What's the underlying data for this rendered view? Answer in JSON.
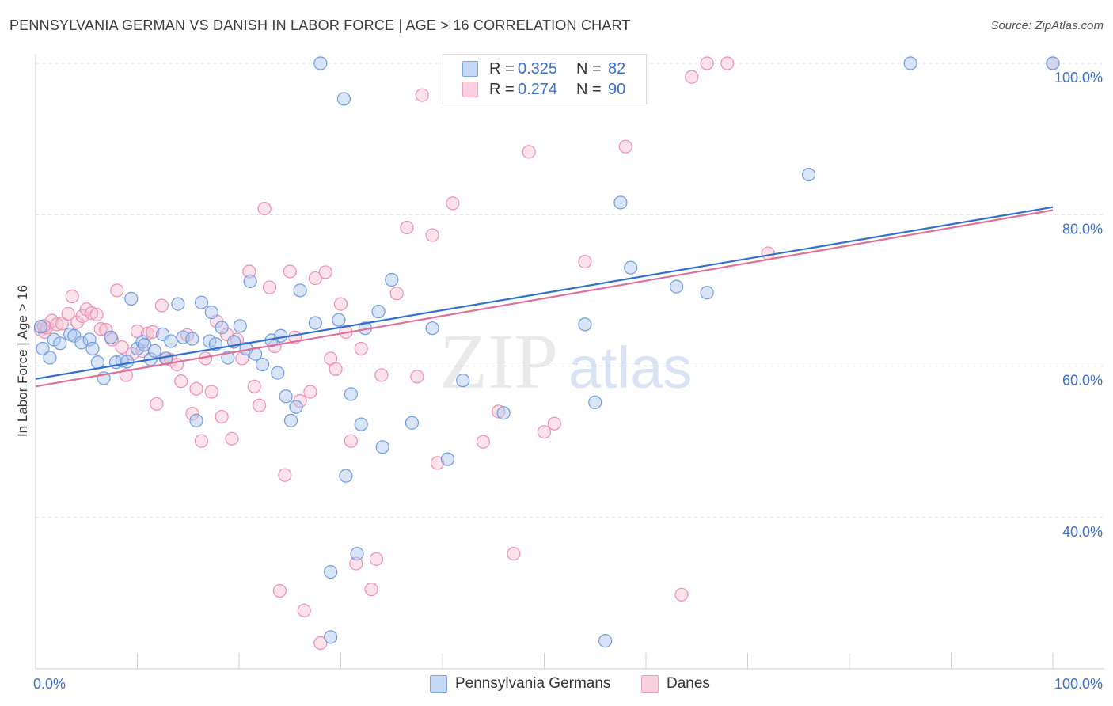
{
  "title": "PENNSYLVANIA GERMAN VS DANISH IN LABOR FORCE | AGE > 16 CORRELATION CHART",
  "source": "Source: ZipAtlas.com",
  "watermark": {
    "zip": "ZIP",
    "atlas": "atlas"
  },
  "legend": {
    "r_label": "R =",
    "n_label": "N =",
    "entries": [
      {
        "r": "0.325",
        "n": "82"
      },
      {
        "r": "0.274",
        "n": "90"
      }
    ]
  },
  "colors": {
    "blue_fill": "#aac6ee",
    "blue_stroke": "#6d9be0",
    "blue_line": "#2f6fcf",
    "pink_fill": "#f7bfd2",
    "pink_stroke": "#ee8fb0",
    "pink_line": "#e06f99",
    "axis_text": "#3a6fd0"
  },
  "chart_data": {
    "type": "scatter",
    "ylabel": "In Labor Force | Age > 16",
    "xlim": [
      0,
      100
    ],
    "ylim": [
      20,
      100
    ],
    "x_tick_labels": [
      "0.0%",
      "100.0%"
    ],
    "y_ticks": [
      40,
      60,
      80,
      100
    ],
    "y_tick_labels": [
      "40.0%",
      "60.0%",
      "80.0%",
      "100.0%"
    ],
    "grid": "horizontal dashed",
    "series": [
      {
        "name": "Pennsylvania Germans",
        "trend": {
          "x0": 0,
          "y0": 58.3,
          "x1": 100,
          "y1": 81.0
        },
        "points": [
          [
            0.5,
            65.2
          ],
          [
            0.7,
            62.3
          ],
          [
            1.4,
            61.1
          ],
          [
            1.8,
            63.5
          ],
          [
            2.4,
            63.0
          ],
          [
            3.4,
            64.2
          ],
          [
            3.8,
            64.0
          ],
          [
            4.5,
            63.1
          ],
          [
            5.3,
            63.5
          ],
          [
            5.6,
            62.3
          ],
          [
            6.1,
            60.5
          ],
          [
            6.7,
            58.4
          ],
          [
            7.4,
            63.8
          ],
          [
            7.9,
            60.5
          ],
          [
            8.5,
            60.7
          ],
          [
            9.0,
            60.6
          ],
          [
            9.4,
            68.9
          ],
          [
            10.0,
            62.3
          ],
          [
            10.5,
            63.2
          ],
          [
            10.7,
            62.8
          ],
          [
            11.3,
            60.9
          ],
          [
            11.7,
            62.0
          ],
          [
            12.5,
            64.2
          ],
          [
            12.8,
            61.0
          ],
          [
            13.3,
            63.3
          ],
          [
            14.0,
            68.2
          ],
          [
            14.5,
            63.8
          ],
          [
            15.4,
            63.6
          ],
          [
            15.8,
            52.8
          ],
          [
            16.3,
            68.4
          ],
          [
            17.1,
            63.3
          ],
          [
            17.3,
            67.1
          ],
          [
            17.7,
            62.9
          ],
          [
            18.3,
            65.1
          ],
          [
            18.9,
            61.1
          ],
          [
            19.5,
            63.2
          ],
          [
            20.1,
            65.3
          ],
          [
            20.7,
            62.3
          ],
          [
            21.1,
            71.2
          ],
          [
            21.6,
            61.6
          ],
          [
            22.3,
            60.2
          ],
          [
            23.2,
            63.4
          ],
          [
            23.8,
            59.1
          ],
          [
            24.1,
            64.0
          ],
          [
            24.6,
            56.0
          ],
          [
            25.1,
            52.8
          ],
          [
            25.6,
            54.6
          ],
          [
            26.0,
            70.0
          ],
          [
            27.5,
            65.7
          ],
          [
            28.0,
            100.0
          ],
          [
            29.0,
            32.8
          ],
          [
            29.0,
            24.2
          ],
          [
            29.8,
            66.1
          ],
          [
            30.3,
            95.3
          ],
          [
            30.5,
            45.5
          ],
          [
            31.0,
            56.3
          ],
          [
            31.6,
            35.2
          ],
          [
            32.0,
            52.3
          ],
          [
            32.4,
            65.0
          ],
          [
            33.7,
            67.2
          ],
          [
            34.1,
            49.3
          ],
          [
            35.0,
            71.4
          ],
          [
            37.0,
            52.5
          ],
          [
            39.0,
            65.0
          ],
          [
            40.5,
            47.7
          ],
          [
            42.0,
            58.1
          ],
          [
            43.0,
            100.0
          ],
          [
            46.0,
            53.8
          ],
          [
            47.0,
            95.7
          ],
          [
            51.0,
            100.0
          ],
          [
            54.0,
            65.5
          ],
          [
            55.0,
            55.2
          ],
          [
            56.0,
            23.7
          ],
          [
            57.5,
            81.6
          ],
          [
            58.5,
            73.0
          ],
          [
            63.0,
            70.5
          ],
          [
            66.0,
            69.7
          ],
          [
            76.0,
            85.3
          ],
          [
            86.0,
            100.0
          ],
          [
            100.0,
            100.0
          ]
        ]
      },
      {
        "name": "Danes",
        "trend": {
          "x0": 0,
          "y0": 57.3,
          "x1": 100,
          "y1": 80.6
        },
        "points": [
          [
            0.5,
            64.8
          ],
          [
            0.9,
            64.5
          ],
          [
            1.1,
            65.1
          ],
          [
            1.6,
            66.0
          ],
          [
            2.1,
            65.5
          ],
          [
            2.6,
            65.6
          ],
          [
            3.2,
            66.9
          ],
          [
            3.6,
            69.2
          ],
          [
            4.1,
            65.8
          ],
          [
            4.6,
            66.6
          ],
          [
            5.0,
            67.5
          ],
          [
            5.5,
            67.0
          ],
          [
            6.0,
            66.8
          ],
          [
            6.4,
            64.9
          ],
          [
            6.9,
            64.8
          ],
          [
            7.5,
            63.5
          ],
          [
            8.0,
            70.0
          ],
          [
            8.5,
            62.5
          ],
          [
            8.9,
            58.8
          ],
          [
            9.5,
            61.6
          ],
          [
            10.0,
            64.6
          ],
          [
            10.5,
            62.0
          ],
          [
            11.0,
            64.3
          ],
          [
            11.5,
            64.5
          ],
          [
            11.9,
            55.0
          ],
          [
            12.4,
            68.0
          ],
          [
            12.9,
            61.0
          ],
          [
            13.3,
            60.8
          ],
          [
            13.9,
            60.2
          ],
          [
            14.3,
            58.0
          ],
          [
            14.9,
            64.1
          ],
          [
            15.4,
            53.7
          ],
          [
            15.8,
            57.0
          ],
          [
            16.3,
            50.1
          ],
          [
            16.7,
            61.0
          ],
          [
            17.3,
            56.6
          ],
          [
            17.8,
            65.9
          ],
          [
            18.3,
            53.3
          ],
          [
            18.8,
            64.2
          ],
          [
            19.3,
            50.4
          ],
          [
            19.8,
            63.5
          ],
          [
            20.3,
            61.0
          ],
          [
            21.0,
            72.5
          ],
          [
            21.5,
            57.3
          ],
          [
            22.0,
            54.8
          ],
          [
            22.5,
            80.8
          ],
          [
            23.0,
            70.4
          ],
          [
            23.5,
            62.6
          ],
          [
            24.0,
            30.3
          ],
          [
            24.5,
            45.6
          ],
          [
            25.0,
            72.5
          ],
          [
            25.5,
            63.8
          ],
          [
            26.0,
            55.4
          ],
          [
            26.4,
            27.7
          ],
          [
            27.0,
            56.6
          ],
          [
            27.5,
            71.6
          ],
          [
            28.0,
            23.4
          ],
          [
            28.5,
            72.4
          ],
          [
            29.0,
            61.0
          ],
          [
            29.5,
            59.6
          ],
          [
            30.0,
            68.2
          ],
          [
            30.5,
            64.5
          ],
          [
            31.0,
            50.1
          ],
          [
            31.5,
            33.9
          ],
          [
            32.0,
            62.3
          ],
          [
            33.0,
            30.5
          ],
          [
            33.5,
            34.5
          ],
          [
            34.0,
            58.8
          ],
          [
            35.5,
            69.6
          ],
          [
            36.5,
            78.3
          ],
          [
            37.5,
            58.6
          ],
          [
            38.0,
            95.8
          ],
          [
            39.0,
            77.3
          ],
          [
            39.5,
            47.2
          ],
          [
            41.0,
            81.5
          ],
          [
            44.0,
            50.0
          ],
          [
            45.5,
            54.0
          ],
          [
            47.0,
            35.2
          ],
          [
            48.5,
            88.3
          ],
          [
            50.0,
            51.3
          ],
          [
            51.0,
            52.4
          ],
          [
            54.0,
            73.8
          ],
          [
            58.0,
            89.0
          ],
          [
            63.5,
            29.8
          ],
          [
            64.5,
            98.2
          ],
          [
            66.0,
            100.0
          ],
          [
            68.0,
            100.0
          ],
          [
            72.0,
            74.9
          ],
          [
            100.0,
            100.0
          ],
          [
            0.8,
            65.3
          ]
        ]
      }
    ]
  }
}
